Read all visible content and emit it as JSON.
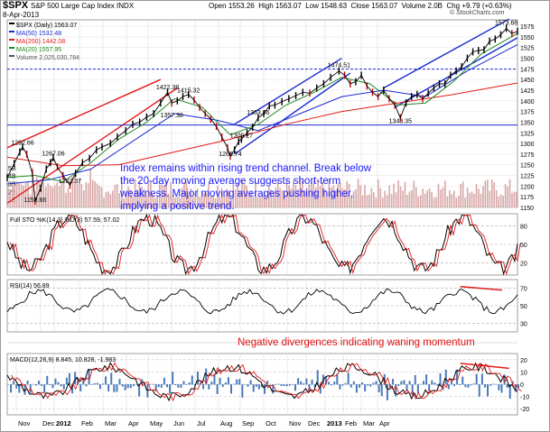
{
  "header": {
    "symbol": "$SPX",
    "name": "S&P 500 Large Cap Index",
    "exchange": "INDX",
    "date": "8-Apr-2013",
    "open_label": "Open",
    "open": "1553.26",
    "high_label": "High",
    "high": "1563.07",
    "low_label": "Low",
    "low": "1548.63",
    "close_label": "Close",
    "close": "1563.07",
    "volume_label": "Volume",
    "volume": "2.0B",
    "chg_label": "Chg",
    "chg": "+9.79 (+0.63%)",
    "copyright": "© StockCharts.com"
  },
  "annotations": {
    "main": "Index remains within rising trend channel.  Break below the 20-day moving average suggests short-term weakness.  Major moving averages pushing higher, implying a positive trend.",
    "momentum": "Negative divergences indicating waning momentum"
  },
  "colors": {
    "price": "#000000",
    "ma50": "#1a2ad0",
    "ma200": "#e31a1a",
    "ma20": "#1f8a1f",
    "volume": "#d8a8a8",
    "trendline": "#1a2ad0",
    "redline": "#e31a1a",
    "hline": "#1a2ad0",
    "hist": "#4a7ab8"
  },
  "chart_data": [
    {
      "type": "line",
      "title": "$SPX (Daily) 1563.07",
      "legend": [
        {
          "name": "$SPX (Daily)",
          "value": "1563.07"
        },
        {
          "name": "MA(50)",
          "value": "1532.48"
        },
        {
          "name": "MA(200)",
          "value": "1442.08"
        },
        {
          "name": "MA(20)",
          "value": "1557.95"
        },
        {
          "name": "Volume",
          "value": "2,025,030,784"
        }
      ],
      "ylim": [
        1150,
        1590
      ],
      "yticks": [
        "1150",
        "1175",
        "1200",
        "1225",
        "1250",
        "1275",
        "1300",
        "1325",
        "1350",
        "1375",
        "1400",
        "1425",
        "1450",
        "1475",
        "1500",
        "1525",
        "1550",
        "1575"
      ],
      "xlabels": [
        "Nov",
        "Dec",
        "2012",
        "Feb",
        "Mar",
        "Apr",
        "May",
        "Jun",
        "Jul",
        "Aug",
        "Sep",
        "Oct",
        "Nov",
        "Dec",
        "2013",
        "Feb",
        "Mar",
        "Apr"
      ],
      "volume_ticks": [
        "1B",
        "2B",
        "3B",
        "4B",
        "5B"
      ],
      "price_annotations": [
        {
          "label": "1292.66",
          "x": 11,
          "y": 1292.66
        },
        {
          "label": "1158.66",
          "x": 20,
          "y": 1158.66
        },
        {
          "label": "1267.06",
          "x": 33,
          "y": 1267.06
        },
        {
          "label": "1202.37",
          "x": 45,
          "y": 1202.37
        },
        {
          "label": "1422.38",
          "x": 115,
          "y": 1422.38
        },
        {
          "label": "1357.38",
          "x": 118,
          "y": 1357.38
        },
        {
          "label": "1415.32",
          "x": 130,
          "y": 1415.32
        },
        {
          "label": "1266.74",
          "x": 160,
          "y": 1266.74
        },
        {
          "label": "1309.27",
          "x": 168,
          "y": 1309.27
        },
        {
          "label": "1363.46",
          "x": 180,
          "y": 1363.46
        },
        {
          "label": "1474.51",
          "x": 238,
          "y": 1474.51
        },
        {
          "label": "1343.35",
          "x": 282,
          "y": 1343.35
        },
        {
          "label": "1573.66",
          "x": 358,
          "y": 1573.66
        }
      ],
      "hlines": [
        1474.51,
        1343.35
      ],
      "series": [
        {
          "name": "$SPX",
          "x": [
            0,
            5,
            9,
            11,
            14,
            18,
            20,
            24,
            28,
            31,
            33,
            36,
            40,
            45,
            49,
            54,
            59,
            64,
            68,
            74,
            79,
            85,
            90,
            95,
            100,
            105,
            110,
            115,
            118,
            122,
            126,
            130,
            134,
            138,
            142,
            146,
            150,
            154,
            158,
            160,
            163,
            166,
            168,
            172,
            176,
            180,
            184,
            188,
            192,
            197,
            202,
            207,
            212,
            217,
            222,
            227,
            232,
            238,
            242,
            246,
            250,
            254,
            258,
            262,
            266,
            270,
            274,
            278,
            282,
            286,
            290,
            294,
            298,
            302,
            306,
            310,
            314,
            318,
            322,
            326,
            330,
            334,
            338,
            342,
            346,
            350,
            354,
            358,
            362,
            366
          ],
          "values": [
            1220,
            1253,
            1280,
            1292,
            1275,
            1230,
            1165,
            1195,
            1240,
            1255,
            1267,
            1245,
            1225,
            1202,
            1230,
            1255,
            1265,
            1285,
            1292,
            1300,
            1315,
            1330,
            1345,
            1350,
            1362,
            1370,
            1395,
            1420,
            1395,
            1400,
            1410,
            1415,
            1402,
            1385,
            1370,
            1357,
            1340,
            1315,
            1290,
            1270,
            1285,
            1305,
            1310,
            1325,
            1338,
            1360,
            1370,
            1388,
            1390,
            1398,
            1405,
            1412,
            1420,
            1418,
            1430,
            1440,
            1455,
            1470,
            1460,
            1440,
            1445,
            1460,
            1435,
            1420,
            1410,
            1425,
            1405,
            1390,
            1360,
            1395,
            1410,
            1415,
            1405,
            1418,
            1430,
            1440,
            1440,
            1460,
            1470,
            1480,
            1500,
            1515,
            1518,
            1520,
            1540,
            1545,
            1555,
            1570,
            1558,
            1563
          ]
        },
        {
          "name": "MA(50)",
          "x": [
            0,
            30,
            60,
            90,
            120,
            150,
            180,
            210,
            240,
            270,
            300,
            330,
            366
          ],
          "values": [
            1205,
            1215,
            1240,
            1305,
            1370,
            1355,
            1330,
            1370,
            1410,
            1425,
            1410,
            1470,
            1532
          ]
        },
        {
          "name": "MA(200)",
          "x": [
            0,
            40,
            80,
            120,
            160,
            200,
            240,
            280,
            320,
            366
          ],
          "values": [
            1268,
            1248,
            1250,
            1280,
            1310,
            1345,
            1375,
            1395,
            1415,
            1442
          ]
        },
        {
          "name": "MA(20)",
          "x": [
            0,
            20,
            40,
            60,
            80,
            100,
            120,
            140,
            160,
            180,
            200,
            220,
            240,
            260,
            280,
            300,
            320,
            340,
            366
          ],
          "values": [
            1220,
            1225,
            1210,
            1255,
            1310,
            1350,
            1405,
            1385,
            1320,
            1345,
            1390,
            1420,
            1455,
            1440,
            1390,
            1395,
            1445,
            1510,
            1558
          ]
        }
      ],
      "trend_channels": [
        {
          "color": "blue",
          "from": {
            "x": 163,
            "y": 1275
          },
          "to": {
            "x": 246,
            "y": 1465
          }
        },
        {
          "color": "blue",
          "from": {
            "x": 163,
            "y": 1345
          },
          "to": {
            "x": 240,
            "y": 1500
          }
        },
        {
          "color": "blue",
          "from": {
            "x": 278,
            "y": 1385
          },
          "to": {
            "x": 366,
            "y": 1548
          }
        },
        {
          "color": "blue",
          "from": {
            "x": 270,
            "y": 1430
          },
          "to": {
            "x": 360,
            "y": 1592
          }
        },
        {
          "color": "red",
          "from": {
            "x": 0,
            "y": 1160
          },
          "to": {
            "x": 122,
            "y": 1430
          }
        },
        {
          "color": "red",
          "from": {
            "x": 0,
            "y": 1290
          },
          "to": {
            "x": 110,
            "y": 1450
          }
        }
      ]
    },
    {
      "type": "line",
      "title": "Full STO %K(14,3) %D(3) 57.59, 57.02",
      "ylim": [
        0,
        100
      ],
      "yticks": [
        "20",
        "50",
        "80"
      ],
      "series": [
        {
          "name": "%K",
          "value": "57.59"
        },
        {
          "name": "%D",
          "value": "57.02"
        }
      ]
    },
    {
      "type": "line",
      "title": "RSI(14) 56.89",
      "ylim": [
        20,
        80
      ],
      "yticks": [
        "30",
        "50",
        "70"
      ],
      "series": [
        {
          "name": "RSI(14)",
          "value": "56.89"
        }
      ],
      "divergence_line": {
        "from": {
          "x": 325,
          "y": 72
        },
        "to": {
          "x": 355,
          "y": 68
        }
      }
    },
    {
      "type": "line",
      "title": "MACD(12,26,9) 8.845, 10.828, -1.983",
      "ylim": [
        -25,
        25
      ],
      "yticks": [
        "-20",
        "-10",
        "0",
        "10",
        "20"
      ],
      "series": [
        {
          "name": "MACD",
          "value": "8.845"
        },
        {
          "name": "Signal",
          "value": "10.828"
        },
        {
          "name": "Histogram",
          "value": "-1.983"
        }
      ],
      "divergence_line": {
        "from": {
          "x": 325,
          "y": 17
        },
        "to": {
          "x": 360,
          "y": 13
        }
      }
    }
  ]
}
